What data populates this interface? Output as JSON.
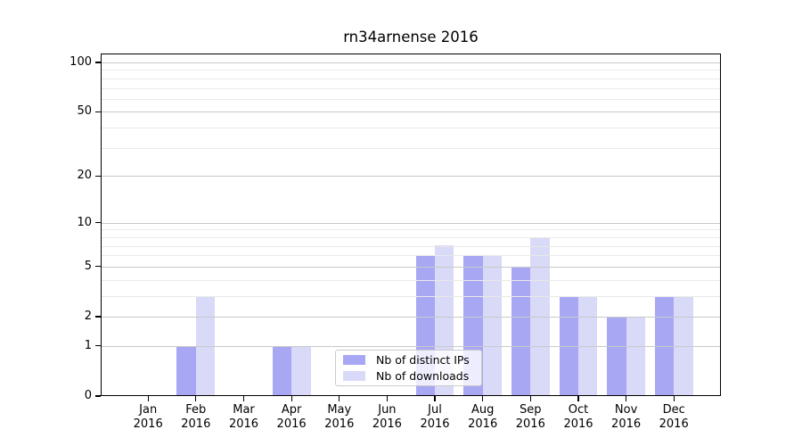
{
  "title": "rn34arnense 2016",
  "chart_data": {
    "type": "bar",
    "title": "rn34arnense 2016",
    "categories": [
      "Jan",
      "Feb",
      "Mar",
      "Apr",
      "May",
      "Jun",
      "Jul",
      "Aug",
      "Sep",
      "Oct",
      "Nov",
      "Dec"
    ],
    "year_label": "2016",
    "series": [
      {
        "name": "Nb of distinct IPs",
        "color": "#a7a7f4",
        "values": [
          0,
          1,
          0,
          1,
          0,
          0,
          6,
          6,
          5,
          3,
          2,
          3
        ]
      },
      {
        "name": "Nb of downloads",
        "color": "#d9d9f8",
        "values": [
          0,
          3,
          0,
          1,
          0,
          0,
          7,
          6,
          8,
          3,
          2,
          3
        ]
      }
    ],
    "xlabel": "",
    "ylabel": "",
    "yscale": "log1p",
    "yticks": [
      0,
      1,
      2,
      5,
      10,
      20,
      50,
      100
    ],
    "minor_yticks": [
      3,
      4,
      6,
      7,
      8,
      9,
      30,
      40,
      60,
      70,
      80,
      90
    ],
    "ylim": [
      0,
      113
    ],
    "grid": "major-and-minor, drawn above bars",
    "legend_position": "lower center"
  },
  "colors": {
    "bar_distinct_ips": "#a7a7f4",
    "bar_downloads": "#d9d9f8",
    "major_grid": "#c9c9c9",
    "minor_grid": "#e9e9e9",
    "axis": "#000000",
    "legend_border": "#cbcbcb",
    "background": "#ffffff"
  }
}
